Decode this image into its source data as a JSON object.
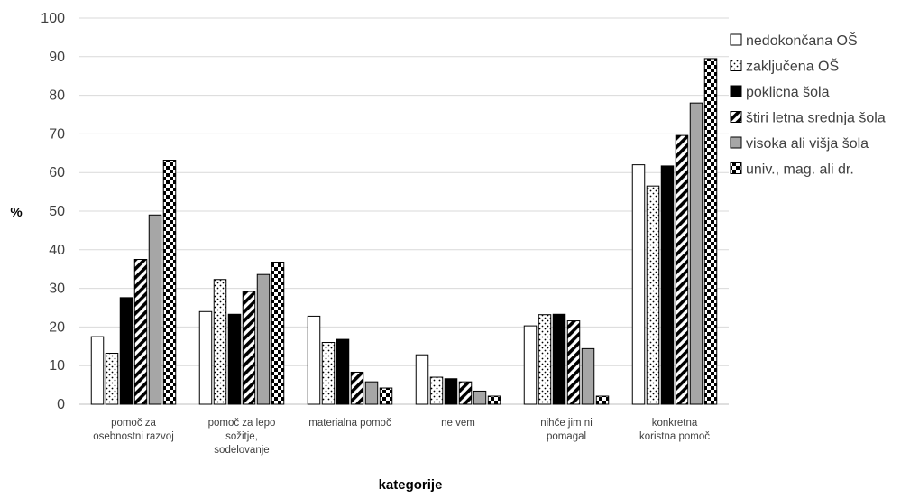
{
  "chart_data": {
    "type": "bar",
    "title": "",
    "xlabel": "kategorije",
    "ylabel": "%",
    "ylim": [
      0,
      100
    ],
    "yticks": [
      0,
      10,
      20,
      30,
      40,
      50,
      60,
      70,
      80,
      90,
      100
    ],
    "grid": true,
    "legend_position": "right",
    "categories": [
      [
        "pomoč za",
        "osebnostni razvoj"
      ],
      [
        "pomoč za lepo",
        "sožitje,",
        "sodelovanje"
      ],
      [
        "materialna pomoč"
      ],
      [
        "ne vem"
      ],
      [
        "nihče jim ni",
        "pomagal"
      ],
      [
        "konkretna",
        "koristna pomoč"
      ]
    ],
    "series": [
      {
        "name": "nedokončana OŠ",
        "pattern": "white",
        "values": [
          17.5,
          24,
          22.8,
          12.8,
          20.3,
          62
        ]
      },
      {
        "name": "zaključena OŠ",
        "pattern": "dots",
        "values": [
          13.2,
          32.3,
          16,
          7,
          23.2,
          56.5
        ]
      },
      {
        "name": "poklicna šola",
        "pattern": "black",
        "values": [
          27.6,
          23.3,
          16.8,
          6.6,
          23.3,
          61.7
        ]
      },
      {
        "name": "štiri letna srednja šola",
        "pattern": "diagonal",
        "values": [
          37.5,
          29.2,
          8.3,
          5.8,
          21.6,
          69.6
        ]
      },
      {
        "name": "visoka ali višja šola",
        "pattern": "gray",
        "values": [
          49,
          33.6,
          5.8,
          3.4,
          14.4,
          78
        ]
      },
      {
        "name": "univ., mag. ali dr.",
        "pattern": "checker",
        "values": [
          63.2,
          36.8,
          4.2,
          2.1,
          2.1,
          89.5
        ]
      }
    ]
  }
}
